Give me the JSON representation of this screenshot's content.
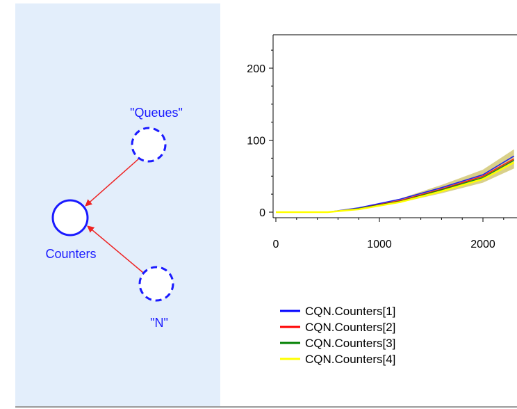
{
  "graph": {
    "nodes": [
      {
        "id": "queues",
        "label": "\"Queues\"",
        "style": "dashed"
      },
      {
        "id": "counters",
        "label": "Counters",
        "style": "solid"
      },
      {
        "id": "n",
        "label": "\"N\"",
        "style": "dashed"
      }
    ],
    "edges": [
      {
        "from": "queues",
        "to": "counters"
      },
      {
        "from": "n",
        "to": "counters"
      }
    ],
    "node_color": "#1a1aff",
    "edge_color": "#ee2222"
  },
  "chart_data": {
    "type": "line",
    "x_ticks": [
      "0",
      "1000",
      "2000"
    ],
    "y_ticks": [
      "0",
      "100",
      "200"
    ],
    "xlim": [
      0,
      2300
    ],
    "ylim": [
      -5,
      240
    ],
    "grid": false,
    "legend_position": "bottom-left",
    "series": [
      {
        "name": "CQN.Counters[1]",
        "color": "#0000ff",
        "x": [
          0,
          500,
          800,
          1200,
          1600,
          2000,
          2300
        ],
        "y": [
          0,
          0,
          6,
          18,
          34,
          52,
          78
        ]
      },
      {
        "name": "CQN.Counters[2]",
        "color": "#ff0000",
        "x": [
          0,
          500,
          800,
          1200,
          1600,
          2000,
          2300
        ],
        "y": [
          0,
          0,
          5,
          16,
          32,
          50,
          74
        ]
      },
      {
        "name": "CQN.Counters[3]",
        "color": "#008000",
        "x": [
          0,
          500,
          800,
          1200,
          1600,
          2000,
          2300
        ],
        "y": [
          0,
          0,
          5,
          15,
          31,
          48,
          72
        ]
      },
      {
        "name": "CQN.Counters[4]",
        "color": "#ffff00",
        "x": [
          0,
          500,
          800,
          1200,
          1600,
          2000,
          2300
        ],
        "y": [
          0,
          0,
          4,
          14,
          29,
          46,
          69
        ]
      }
    ]
  }
}
